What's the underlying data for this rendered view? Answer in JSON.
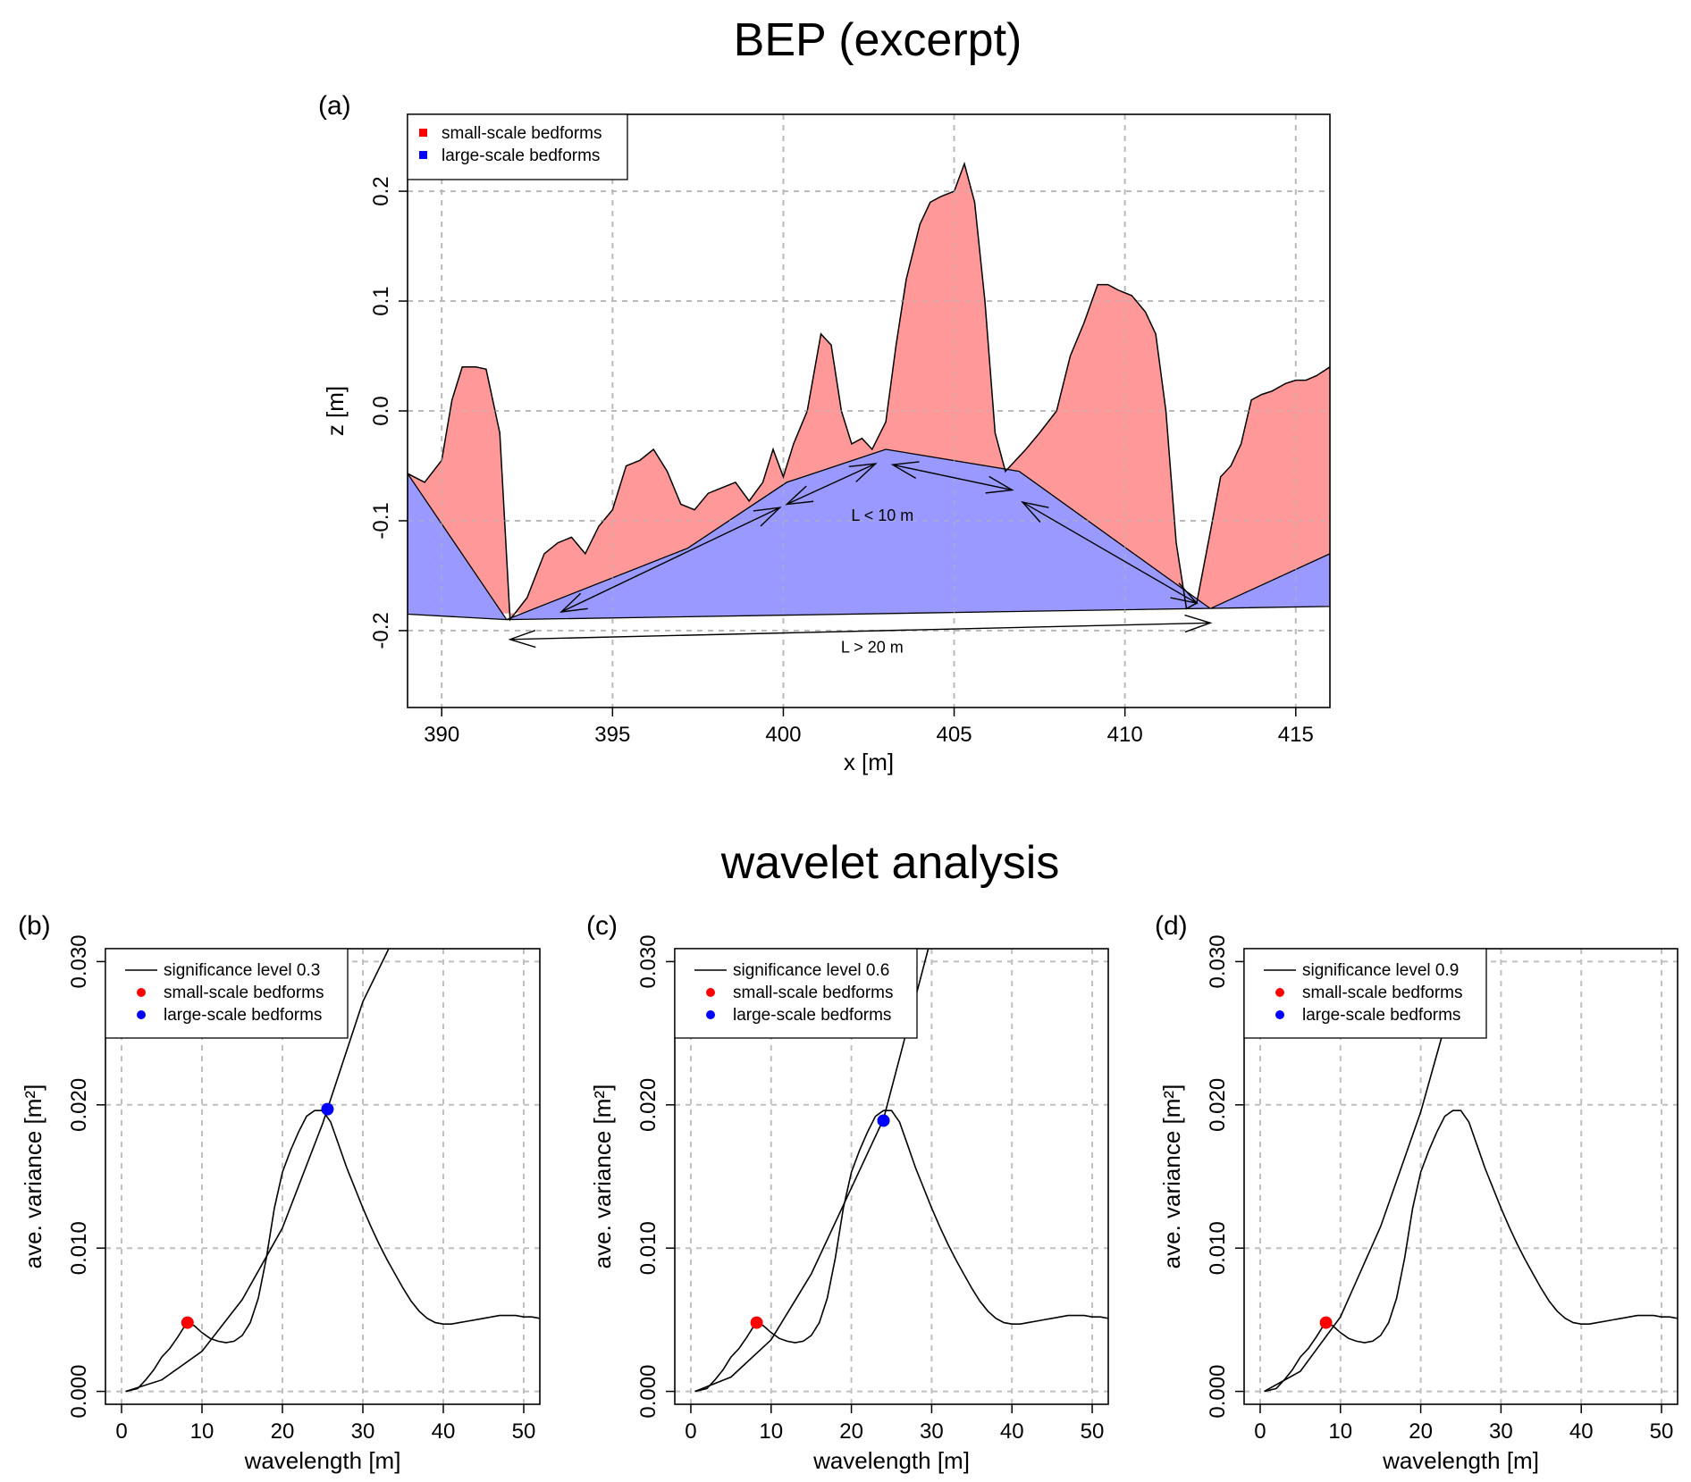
{
  "titles": {
    "top": "BEP (excerpt)",
    "bottom": "wavelet analysis"
  },
  "colors": {
    "small": "#ff9999",
    "large": "#9999ff",
    "small_marker": "#ff0000",
    "large_marker": "#0000ff",
    "line": "#000000",
    "grid": "#c0c0c0"
  },
  "chart_data": [
    {
      "id": "a",
      "type": "area",
      "panel_label": "(a)",
      "title": "",
      "xlabel": "x [m]",
      "ylabel": "z [m]",
      "xlim": [
        389,
        416
      ],
      "ylim": [
        -0.27,
        0.27
      ],
      "xticks": [
        390,
        395,
        400,
        405,
        410,
        415
      ],
      "yticks": [
        -0.2,
        -0.1,
        0.0,
        0.1,
        0.2
      ],
      "ytick_labels": [
        "-0.2",
        "-0.1",
        "0.0",
        "0.1",
        "0.2"
      ],
      "grid": true,
      "legend": {
        "position": "top-left",
        "entries": [
          "small-scale bedforms",
          "large-scale bedforms"
        ]
      },
      "series": [
        {
          "name": "small-scale bedforms",
          "x": [
            389,
            389.5,
            390,
            390.3,
            390.6,
            391.0,
            391.3,
            391.7,
            392.0,
            392.5,
            393.0,
            393.4,
            393.8,
            394.2,
            394.6,
            395.0,
            395.4,
            395.8,
            396.2,
            396.6,
            397.0,
            397.4,
            397.8,
            398.2,
            398.6,
            399.0,
            399.4,
            399.7,
            400.0,
            400.3,
            400.7,
            401.1,
            401.4,
            401.7,
            402.0,
            402.3,
            402.6,
            403.0,
            403.3,
            403.6,
            404.0,
            404.3,
            404.6,
            405.0,
            405.3,
            405.6,
            405.9,
            406.2,
            406.5,
            406.8,
            407.1,
            407.5,
            408.0,
            408.4,
            408.8,
            409.2,
            409.5,
            409.8,
            410.2,
            410.6,
            410.9,
            411.2,
            411.5,
            411.8,
            412.1,
            412.5,
            412.8,
            413.1,
            413.4,
            413.7,
            414.0,
            414.3,
            414.7,
            415.0,
            415.3,
            415.6,
            416.0
          ],
          "z": [
            -0.057,
            -0.065,
            -0.045,
            0.01,
            0.04,
            0.04,
            0.038,
            -0.02,
            -0.19,
            -0.17,
            -0.13,
            -0.12,
            -0.115,
            -0.13,
            -0.105,
            -0.09,
            -0.05,
            -0.045,
            -0.035,
            -0.055,
            -0.085,
            -0.09,
            -0.075,
            -0.07,
            -0.065,
            -0.082,
            -0.065,
            -0.035,
            -0.06,
            -0.03,
            0.0,
            0.07,
            0.06,
            0.0,
            -0.03,
            -0.025,
            -0.035,
            -0.01,
            0.06,
            0.12,
            0.17,
            0.19,
            0.195,
            0.2,
            0.225,
            0.19,
            0.1,
            -0.02,
            -0.055,
            -0.045,
            -0.035,
            -0.02,
            0.0,
            0.05,
            0.08,
            0.115,
            0.115,
            0.11,
            0.105,
            0.09,
            0.07,
            0.0,
            -0.12,
            -0.18,
            -0.175,
            -0.11,
            -0.06,
            -0.05,
            -0.03,
            0.01,
            0.015,
            0.018,
            0.025,
            0.028,
            0.028,
            0.032,
            0.04
          ]
        },
        {
          "name": "large-scale bedforms",
          "x": [
            389,
            391.9,
            397.2,
            400.1,
            403.0,
            406.9,
            412.5,
            416.0
          ],
          "z": [
            -0.057,
            -0.19,
            -0.125,
            -0.065,
            -0.035,
            -0.055,
            -0.18,
            -0.13
          ]
        }
      ],
      "annotations": [
        {
          "text": "L < 10 m",
          "x": 402.9,
          "y": -0.1
        },
        {
          "text": "L > 20 m",
          "x": 402.6,
          "y": -0.22
        }
      ]
    },
    {
      "id": "b",
      "type": "line",
      "panel_label": "(b)",
      "xlabel": "wavelength [m]",
      "ylabel": "ave. variance [m²]",
      "xlim": [
        -2,
        52
      ],
      "ylim": [
        -0.0009,
        0.0309
      ],
      "xticks": [
        0,
        10,
        20,
        30,
        40,
        50
      ],
      "yticks": [
        0.0,
        0.01,
        0.02,
        0.03
      ],
      "ytick_labels": [
        "0.000",
        "0.010",
        "0.020",
        "0.030"
      ],
      "grid": true,
      "legend": {
        "position": "top-left",
        "entries": [
          "significance level 0.3",
          "small-scale bedforms",
          "large-scale bedforms"
        ]
      },
      "series": [
        {
          "name": "significance level 0.3",
          "x": [
            0.5,
            5,
            10,
            15,
            20,
            25,
            30,
            34
          ],
          "y": [
            0.0,
            0.0008,
            0.0028,
            0.0064,
            0.0114,
            0.0187,
            0.0272,
            0.0318
          ]
        },
        {
          "name": "",
          "x": [
            0.5,
            2,
            3,
            4,
            5,
            6,
            7,
            8,
            9,
            10,
            11,
            12,
            13,
            14,
            15,
            16,
            17,
            18,
            19,
            20,
            21,
            22,
            23,
            24,
            25,
            26,
            27,
            28,
            29,
            30,
            31,
            32,
            33,
            34,
            35,
            36,
            37,
            38,
            39,
            40,
            41,
            42,
            43,
            44,
            45,
            46,
            47,
            48,
            49,
            50,
            51,
            52
          ],
          "y": [
            0.0,
            0.0002,
            0.0008,
            0.0015,
            0.0024,
            0.003,
            0.0038,
            0.0047,
            0.0046,
            0.0041,
            0.0037,
            0.0035,
            0.0034,
            0.0035,
            0.0039,
            0.0048,
            0.0065,
            0.0093,
            0.0128,
            0.0153,
            0.0168,
            0.0181,
            0.0192,
            0.0196,
            0.0196,
            0.0188,
            0.0172,
            0.0156,
            0.0142,
            0.0128,
            0.0115,
            0.0103,
            0.0092,
            0.0082,
            0.0072,
            0.0063,
            0.0056,
            0.0051,
            0.0048,
            0.0047,
            0.0047,
            0.0048,
            0.0049,
            0.005,
            0.0051,
            0.0052,
            0.0053,
            0.0053,
            0.0053,
            0.0052,
            0.0052,
            0.0051
          ]
        }
      ],
      "markers": [
        {
          "name": "small-scale bedforms",
          "x": 8.2,
          "y": 0.0048
        },
        {
          "name": "large-scale bedforms",
          "x": 25.6,
          "y": 0.0197
        }
      ]
    },
    {
      "id": "c",
      "type": "line",
      "panel_label": "(c)",
      "xlabel": "wavelength [m]",
      "ylabel": "ave. variance [m²]",
      "xlim": [
        -2,
        52
      ],
      "ylim": [
        -0.0009,
        0.0309
      ],
      "xticks": [
        0,
        10,
        20,
        30,
        40,
        50
      ],
      "yticks": [
        0.0,
        0.01,
        0.02,
        0.03
      ],
      "ytick_labels": [
        "0.000",
        "0.010",
        "0.020",
        "0.030"
      ],
      "grid": true,
      "legend": {
        "position": "top-left",
        "entries": [
          "significance level 0.6",
          "small-scale bedforms",
          "large-scale bedforms"
        ]
      },
      "series": [
        {
          "name": "significance level 0.6",
          "x": [
            0.5,
            5,
            10,
            15,
            20,
            24,
            27,
            30
          ],
          "y": [
            0.0,
            0.001,
            0.0036,
            0.0082,
            0.0142,
            0.019,
            0.0254,
            0.0318
          ]
        },
        {
          "name": "",
          "x": [
            0.5,
            2,
            3,
            4,
            5,
            6,
            7,
            8,
            9,
            10,
            11,
            12,
            13,
            14,
            15,
            16,
            17,
            18,
            19,
            20,
            21,
            22,
            23,
            24,
            25,
            26,
            27,
            28,
            29,
            30,
            31,
            32,
            33,
            34,
            35,
            36,
            37,
            38,
            39,
            40,
            41,
            42,
            43,
            44,
            45,
            46,
            47,
            48,
            49,
            50,
            51,
            52
          ],
          "y": [
            0.0,
            0.0002,
            0.0008,
            0.0015,
            0.0024,
            0.003,
            0.0038,
            0.0047,
            0.0046,
            0.0041,
            0.0037,
            0.0035,
            0.0034,
            0.0035,
            0.0039,
            0.0048,
            0.0065,
            0.0093,
            0.0128,
            0.0153,
            0.0168,
            0.0181,
            0.0192,
            0.0196,
            0.0196,
            0.0188,
            0.0172,
            0.0156,
            0.0142,
            0.0128,
            0.0115,
            0.0103,
            0.0092,
            0.0082,
            0.0072,
            0.0063,
            0.0056,
            0.0051,
            0.0048,
            0.0047,
            0.0047,
            0.0048,
            0.0049,
            0.005,
            0.0051,
            0.0052,
            0.0053,
            0.0053,
            0.0053,
            0.0052,
            0.0052,
            0.0051
          ]
        }
      ],
      "markers": [
        {
          "name": "small-scale bedforms",
          "x": 8.2,
          "y": 0.0048
        },
        {
          "name": "large-scale bedforms",
          "x": 24.0,
          "y": 0.0189
        }
      ]
    },
    {
      "id": "d",
      "type": "line",
      "panel_label": "(d)",
      "xlabel": "wavelength [m]",
      "ylabel": "ave. variance [m²]",
      "xlim": [
        -2,
        52
      ],
      "ylim": [
        -0.0009,
        0.0309
      ],
      "xticks": [
        0,
        10,
        20,
        30,
        40,
        50
      ],
      "yticks": [
        0.0,
        0.01,
        0.02,
        0.03
      ],
      "ytick_labels": [
        "0.000",
        "0.010",
        "0.020",
        "0.030"
      ],
      "grid": true,
      "legend": {
        "position": "top-left",
        "entries": [
          "significance level 0.9",
          "small-scale bedforms",
          "large-scale bedforms"
        ]
      },
      "series": [
        {
          "name": "significance level 0.9",
          "x": [
            0.5,
            5,
            10,
            15,
            20,
            23,
            25,
            26
          ],
          "y": [
            0.0,
            0.0014,
            0.0052,
            0.0115,
            0.0195,
            0.0255,
            0.0295,
            0.0318
          ]
        },
        {
          "name": "",
          "x": [
            0.5,
            2,
            3,
            4,
            5,
            6,
            7,
            8,
            9,
            10,
            11,
            12,
            13,
            14,
            15,
            16,
            17,
            18,
            19,
            20,
            21,
            22,
            23,
            24,
            25,
            26,
            27,
            28,
            29,
            30,
            31,
            32,
            33,
            34,
            35,
            36,
            37,
            38,
            39,
            40,
            41,
            42,
            43,
            44,
            45,
            46,
            47,
            48,
            49,
            50,
            51,
            52
          ],
          "y": [
            0.0,
            0.0002,
            0.0008,
            0.0015,
            0.0024,
            0.003,
            0.0038,
            0.0047,
            0.0046,
            0.0041,
            0.0037,
            0.0035,
            0.0034,
            0.0035,
            0.0039,
            0.0048,
            0.0065,
            0.0093,
            0.0128,
            0.0153,
            0.0168,
            0.0181,
            0.0192,
            0.0196,
            0.0196,
            0.0188,
            0.0172,
            0.0156,
            0.0142,
            0.0128,
            0.0115,
            0.0103,
            0.0092,
            0.0082,
            0.0072,
            0.0063,
            0.0056,
            0.0051,
            0.0048,
            0.0047,
            0.0047,
            0.0048,
            0.0049,
            0.005,
            0.0051,
            0.0052,
            0.0053,
            0.0053,
            0.0053,
            0.0052,
            0.0052,
            0.0051
          ]
        }
      ],
      "markers": [
        {
          "name": "small-scale bedforms",
          "x": 8.2,
          "y": 0.0048
        }
      ]
    }
  ]
}
